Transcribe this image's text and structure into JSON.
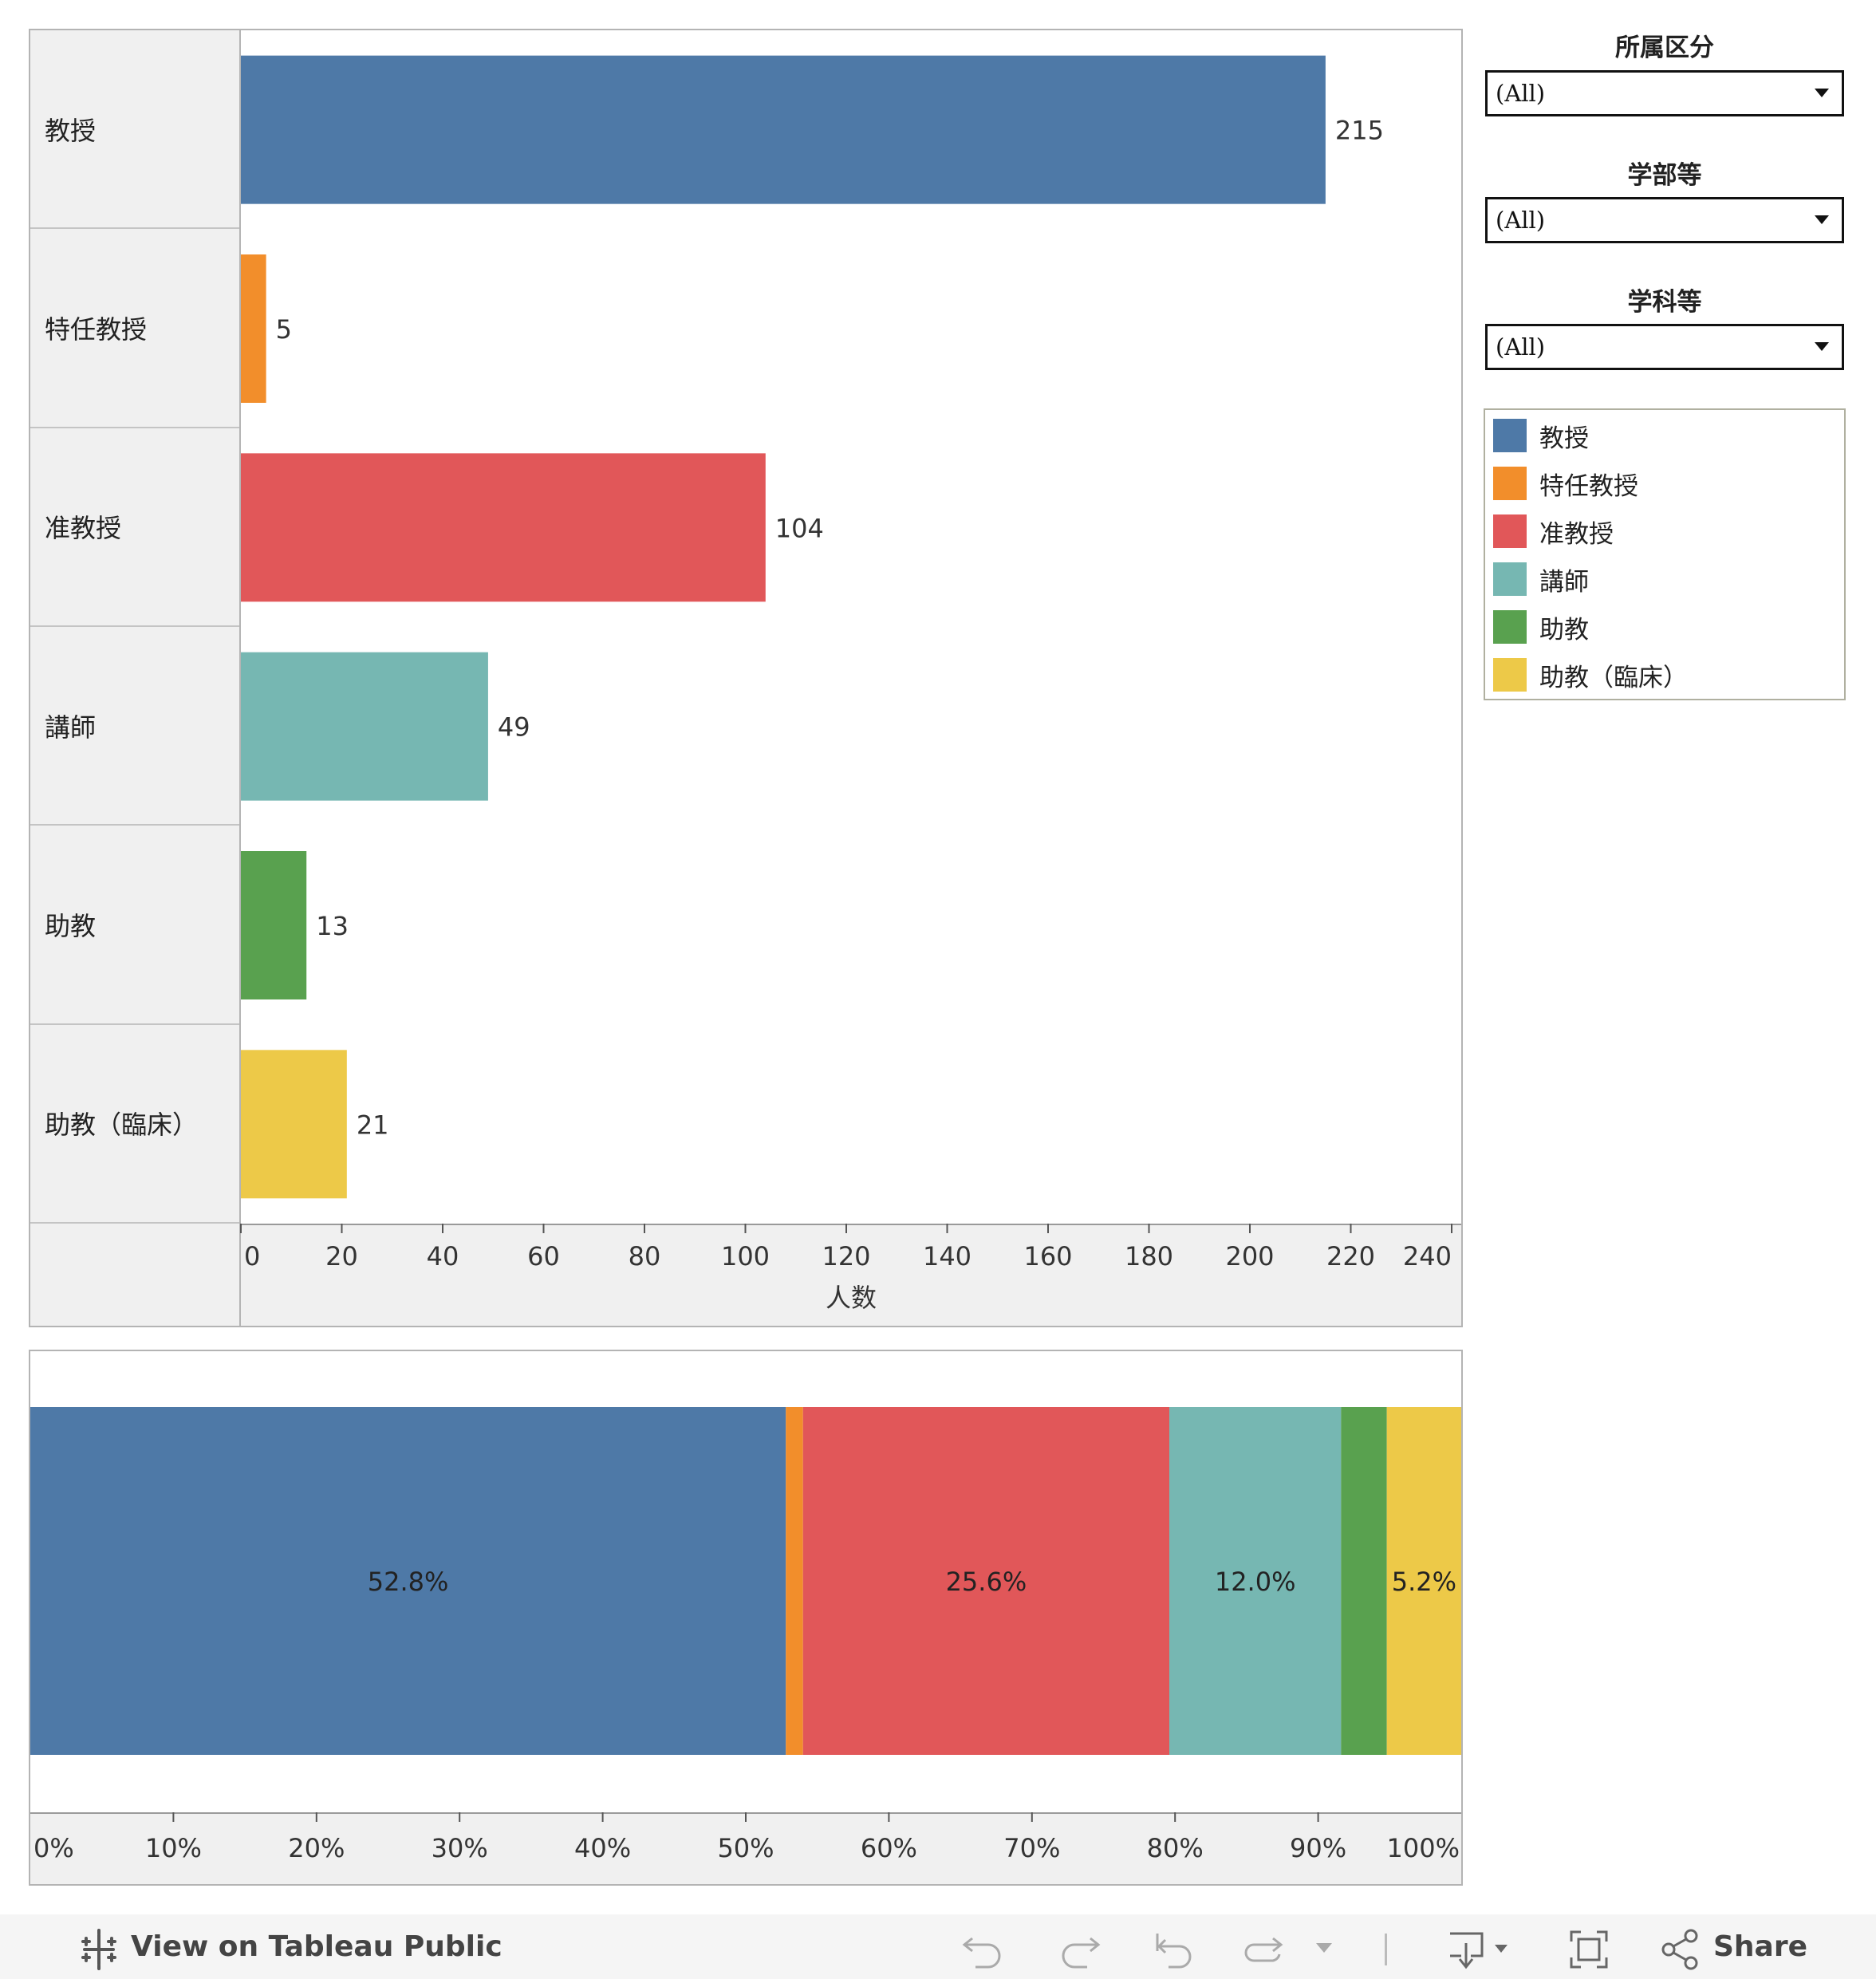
{
  "chart_data": [
    {
      "type": "bar",
      "orientation": "horizontal",
      "categories": [
        "教授",
        "特任教授",
        "准教授",
        "講師",
        "助教",
        "助教（臨床）"
      ],
      "values": [
        215,
        5,
        104,
        49,
        13,
        21
      ],
      "colors": [
        "#4e79a7",
        "#f28e2b",
        "#e15759",
        "#76b7b2",
        "#59a14f",
        "#edc948"
      ],
      "xlabel": "人数",
      "xlim": [
        0,
        240
      ],
      "xticks": [
        "0",
        "20",
        "40",
        "60",
        "80",
        "100",
        "120",
        "140",
        "160",
        "180",
        "200",
        "220",
        "240"
      ],
      "data_labels": [
        "215",
        "5",
        "104",
        "49",
        "13",
        "21"
      ]
    },
    {
      "type": "bar",
      "orientation": "horizontal-stacked-100",
      "series": [
        {
          "name": "教授",
          "value": 52.8,
          "label": "52.8%"
        },
        {
          "name": "特任教授",
          "value": 1.2,
          "label": ""
        },
        {
          "name": "准教授",
          "value": 25.6,
          "label": "25.6%"
        },
        {
          "name": "講師",
          "value": 12.0,
          "label": "12.0%"
        },
        {
          "name": "助教",
          "value": 3.2,
          "label": ""
        },
        {
          "name": "助教（臨床）",
          "value": 5.2,
          "label": "5.2%"
        }
      ],
      "xlim": [
        0,
        100
      ],
      "xticks": [
        "0%",
        "10%",
        "20%",
        "30%",
        "40%",
        "50%",
        "60%",
        "70%",
        "80%",
        "90%",
        "100%"
      ]
    }
  ],
  "filters": [
    {
      "title": "所属区分",
      "value": "(All)"
    },
    {
      "title": "学部等",
      "value": "(All)"
    },
    {
      "title": "学科等",
      "value": "(All)"
    }
  ],
  "legend": {
    "items": [
      {
        "label": "教授",
        "color": "#4e79a7"
      },
      {
        "label": "特任教授",
        "color": "#f28e2b"
      },
      {
        "label": "准教授",
        "color": "#e15759"
      },
      {
        "label": "講師",
        "color": "#76b7b2"
      },
      {
        "label": "助教",
        "color": "#59a14f"
      },
      {
        "label": "助教（臨床）",
        "color": "#edc948"
      }
    ]
  },
  "toolbar": {
    "view_label": "View on Tableau Public",
    "share_label": "Share",
    "icons": [
      "tableau-logo-icon",
      "undo-icon",
      "redo-icon",
      "revert-icon",
      "refresh-icon",
      "dropdown-icon",
      "download-icon",
      "fullscreen-icon",
      "share-icon"
    ]
  }
}
